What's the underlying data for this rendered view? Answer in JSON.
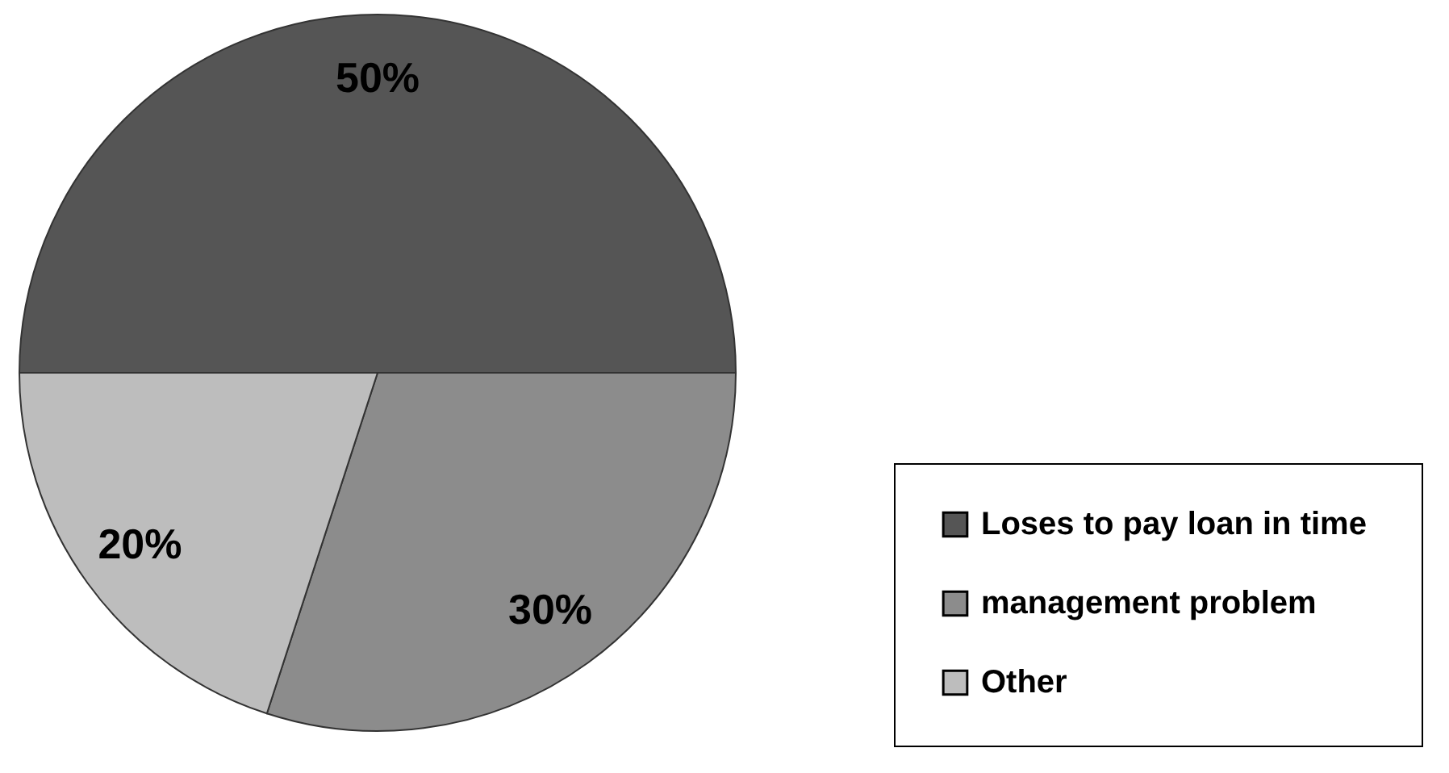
{
  "chart_data": {
    "type": "pie",
    "categories": [
      "Loses to  pay loan in time",
      "management problem",
      "Other"
    ],
    "values": [
      50,
      30,
      20
    ],
    "colors": [
      "#555555",
      "#8c8c8c",
      "#bdbdbd"
    ],
    "value_labels": [
      "50%",
      "30%",
      "20%"
    ],
    "legend": "bottom right"
  }
}
